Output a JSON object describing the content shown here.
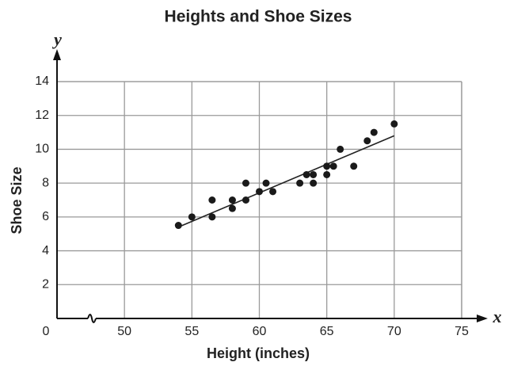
{
  "chart_data": {
    "type": "scatter",
    "title": "Heights and Shoe Sizes",
    "x_label": "Height (inches)",
    "y_label": "Shoe Size",
    "x_axis_letter": "x",
    "y_axis_letter": "y",
    "origin_label": "0",
    "axis_break": true,
    "x": [
      54,
      55,
      56.5,
      56.5,
      58,
      58,
      59,
      59,
      60,
      60.5,
      61,
      63,
      63.5,
      64,
      64,
      65,
      65,
      65.5,
      66,
      67,
      68,
      68.5,
      70
    ],
    "y": [
      5.5,
      6,
      7,
      6,
      7,
      6.5,
      8,
      7,
      7.5,
      8,
      7.5,
      8,
      8.5,
      8.5,
      8,
      9,
      8.5,
      9,
      10,
      9,
      10.5,
      11,
      11.5
    ],
    "color": "#1a1a1a",
    "trend_line": {
      "x": [
        54,
        70
      ],
      "y": [
        5.4,
        10.8
      ]
    },
    "xlim": [
      45,
      75
    ],
    "xticks": [
      50,
      55,
      60,
      65,
      70,
      75
    ],
    "ylim": [
      0,
      14
    ],
    "yticks": [
      2,
      4,
      6,
      8,
      10,
      12,
      14
    ],
    "grid": true
  }
}
